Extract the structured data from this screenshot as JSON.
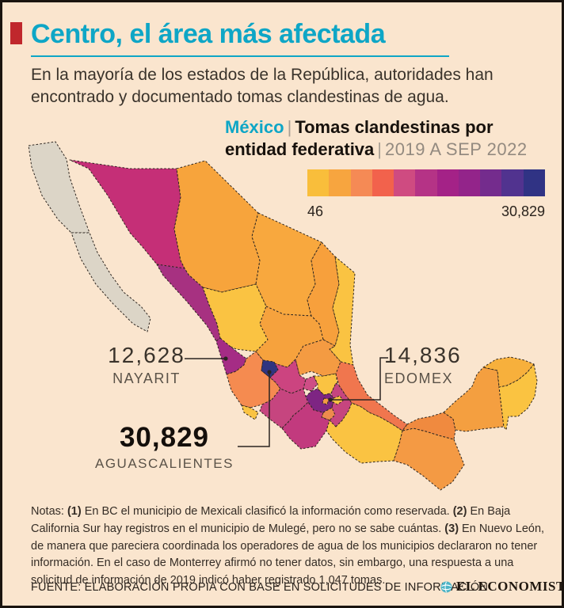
{
  "header": {
    "title": "Centro, el área más afectada",
    "title_color": "#0ea6c6",
    "accent_color": "#c0272c",
    "subtitle": "En la mayoría de los estados de la República, autoridades han encontrado y documentado tomas clandestinas de agua."
  },
  "chart": {
    "region": "México",
    "separator": "|",
    "title": "Tomas clandestinas por entidad federativa",
    "period": "2019 A SEP 2022"
  },
  "legend": {
    "min_label": "46",
    "max_label": "30,829",
    "colors": [
      "#f9be3b",
      "#f7a53f",
      "#f58a55",
      "#f2624c",
      "#cf4b81",
      "#b53386",
      "#a42287",
      "#93248a",
      "#742c8d",
      "#51338f",
      "#303384"
    ]
  },
  "annotations": [
    {
      "id": "nayarit",
      "value": "12,628",
      "label": "NAYARIT"
    },
    {
      "id": "edomex",
      "value": "14,836",
      "label": "EDOMEX"
    },
    {
      "id": "aguascalientes",
      "value": "30,829",
      "label": "AGUASCALIENTES"
    }
  ],
  "notes": {
    "segments": [
      {
        "text": "Notas: ",
        "bold": false
      },
      {
        "text": "(1)",
        "bold": true
      },
      {
        "text": " En BC el municipio de Mexicali clasificó la información como reservada. ",
        "bold": false
      },
      {
        "text": "(2)",
        "bold": true
      },
      {
        "text": " En Baja California Sur hay registros en el municipio de Mulegé, pero no se sabe cuántas. ",
        "bold": false
      },
      {
        "text": "(3)",
        "bold": true
      },
      {
        "text": " En Nuevo León, de manera que pareciera coordinada los operadores de agua de los municipios declararon no tener información. En el caso de Monterrey afirmó no tener datos, sin embargo, una respuesta a una solicitud de información de 2019 indicó haber registrado 1,047 tomas.",
        "bold": false
      }
    ]
  },
  "footer": {
    "source": "FUENTE: ELABORACIÓN PROPIA CON BASE EN SOLICITUDES DE INFORMACIÓN",
    "logo": "EL ECONOMISTA",
    "logo_icon_color": "#4fb4c6"
  },
  "chart_data": {
    "type": "heatmap",
    "subtype": "choropleth-map",
    "title": "México | Tomas clandestinas por entidad federativa",
    "period": "2019 A SEP 2022",
    "value_range": {
      "min": 46,
      "max": 30829
    },
    "legend_min": 46,
    "legend_max": 30829,
    "annotated_values": [
      {
        "state": "Nayarit",
        "value": 12628
      },
      {
        "state": "Estado de México (EDOMEX)",
        "value": 14836
      },
      {
        "state": "Aguascalientes",
        "value": 30829
      }
    ],
    "no_data_states": [
      "Baja California",
      "Baja California Sur"
    ],
    "states": [
      {
        "id": "baja-california",
        "name": "Baja California",
        "color": "#dcd5c7"
      },
      {
        "id": "baja-california-sur",
        "name": "Baja California Sur",
        "color": "#dcd5c7"
      },
      {
        "id": "sonora",
        "name": "Sonora",
        "color": "#c52f77"
      },
      {
        "id": "chihuahua",
        "name": "Chihuahua",
        "color": "#f7a43c"
      },
      {
        "id": "coahuila",
        "name": "Coahuila",
        "color": "#f8a83e"
      },
      {
        "id": "nuevo-leon",
        "name": "Nuevo León",
        "color": "#f7a03c"
      },
      {
        "id": "tamaulipas",
        "name": "Tamaulipas",
        "color": "#fac342"
      },
      {
        "id": "sinaloa",
        "name": "Sinaloa",
        "color": "#a73181"
      },
      {
        "id": "durango",
        "name": "Durango",
        "color": "#fac342"
      },
      {
        "id": "zacatecas",
        "name": "Zacatecas",
        "color": "#f6a23d"
      },
      {
        "id": "san-luis-potosi",
        "name": "San Luis Potosí",
        "color": "#f49b42"
      },
      {
        "id": "nayarit",
        "name": "Nayarit",
        "color": "#a52c85"
      },
      {
        "id": "aguascalientes",
        "name": "Aguascalientes",
        "color": "#2f3480"
      },
      {
        "id": "jalisco",
        "name": "Jalisco",
        "color": "#f58b50"
      },
      {
        "id": "guanajuato",
        "name": "Guanajuato",
        "color": "#cc4480"
      },
      {
        "id": "queretaro",
        "name": "Querétaro",
        "color": "#ce4e86"
      },
      {
        "id": "hidalgo",
        "name": "Hidalgo",
        "color": "#fac342"
      },
      {
        "id": "michoacan",
        "name": "Michoacán",
        "color": "#c6457f"
      },
      {
        "id": "colima",
        "name": "Colima",
        "color": "#fac342"
      },
      {
        "id": "estado-de-mexico",
        "name": "Estado de México",
        "color": "#7e2583"
      },
      {
        "id": "cdmx",
        "name": "Ciudad de México",
        "color": "#f49b42"
      },
      {
        "id": "morelos",
        "name": "Morelos",
        "color": "#ed8b4d"
      },
      {
        "id": "tlaxcala",
        "name": "Tlaxcala",
        "color": "#fac342"
      },
      {
        "id": "puebla",
        "name": "Puebla",
        "color": "#c6457f"
      },
      {
        "id": "guerrero",
        "name": "Guerrero",
        "color": "#c23a7e"
      },
      {
        "id": "veracruz",
        "name": "Veracruz",
        "color": "#f0764e"
      },
      {
        "id": "oaxaca",
        "name": "Oaxaca",
        "color": "#fac342"
      },
      {
        "id": "chiapas",
        "name": "Chiapas",
        "color": "#f49a44"
      },
      {
        "id": "tabasco",
        "name": "Tabasco",
        "color": "#f08a3f"
      },
      {
        "id": "campeche",
        "name": "Campeche",
        "color": "#f49f40"
      },
      {
        "id": "yucatan",
        "name": "Yucatán",
        "color": "#f7b03c"
      },
      {
        "id": "quintana-roo",
        "name": "Quintana Roo",
        "color": "#fac341"
      }
    ]
  }
}
